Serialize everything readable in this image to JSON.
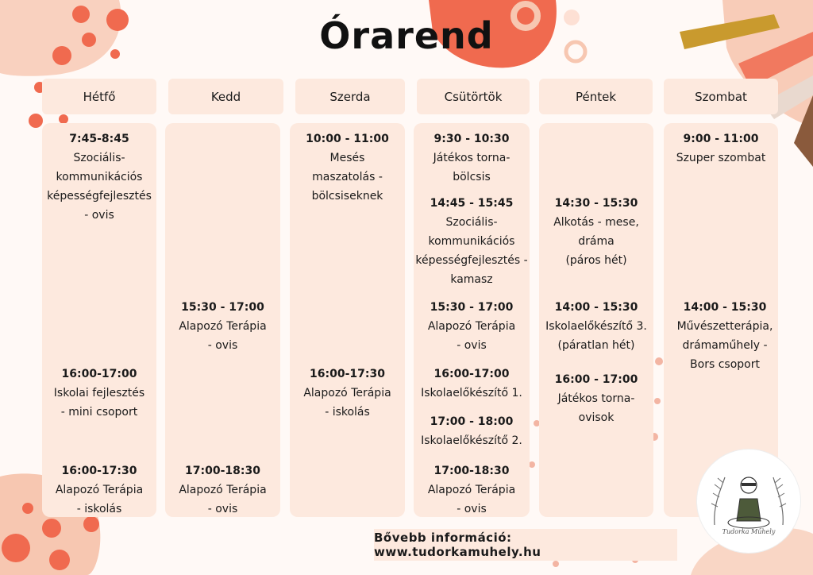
{
  "title": "Órarend",
  "days": [
    {
      "name": "Hétfő",
      "entries": [
        {
          "time": "7:45-8:45",
          "activity": "Szociális-\nkommunikációs\nképességfejlesztés\n- ovis"
        },
        {
          "time": "16:00-17:00",
          "activity": "Iskolai fejlesztés\n- mini csoport"
        },
        {
          "time": "16:00-17:30",
          "activity": "Alapozó Terápia\n- iskolás"
        }
      ]
    },
    {
      "name": "Kedd",
      "entries": [
        {
          "time": "15:30 - 17:00",
          "activity": "Alapozó Terápia\n- ovis"
        },
        {
          "time": "17:00-18:30",
          "activity": "Alapozó Terápia\n- ovis"
        }
      ]
    },
    {
      "name": "Szerda",
      "entries": [
        {
          "time": "10:00 - 11:00",
          "activity": "Mesés\nmaszatolás -\nbölcsiseknek"
        },
        {
          "time": "16:00-17:30",
          "activity": "Alapozó Terápia\n- iskolás"
        }
      ]
    },
    {
      "name": "Csütörtök",
      "entries": [
        {
          "time": "9:30 - 10:30",
          "activity": "Játékos torna-\nbölcsis"
        },
        {
          "time": "14:45 - 15:45",
          "activity": "Szociális-\nkommunikációs\nképességfejlesztés -\nkamasz"
        },
        {
          "time": "15:30 - 17:00",
          "activity": "Alapozó Terápia\n- ovis"
        },
        {
          "time": "16:00-17:00",
          "activity": "Iskolaelőkészítő 1."
        },
        {
          "time": "17:00 - 18:00",
          "activity": "Iskolaelőkészítő 2."
        },
        {
          "time": "17:00-18:30",
          "activity": "Alapozó Terápia\n- ovis"
        }
      ]
    },
    {
      "name": "Péntek",
      "entries": [
        {
          "time": "14:30 - 15:30",
          "activity": "Alkotás - mese,\ndráma\n(páros hét)"
        },
        {
          "time": "14:00 - 15:30",
          "activity": "Iskolaelőkészítő 3.\n(páratlan hét)"
        },
        {
          "time": "16:00 - 17:00",
          "activity": "Játékos torna-\novisok"
        }
      ]
    },
    {
      "name": "Szombat",
      "entries": [
        {
          "time": "9:00 - 11:00",
          "activity": "Szuper szombat"
        },
        {
          "time": "14:00 - 15:30",
          "activity": "Művészetterápia,\ndrámaműhely -\nBors csoport"
        }
      ]
    }
  ],
  "footer": "Bővebb információ: www.tudorkamuhely.hu",
  "logo_text": "Tudorka Műhely",
  "colors": {
    "background": "#fff9f6",
    "panel": "#fde9de",
    "accent_red": "#f06a4f",
    "accent_peach": "#f7c7b1",
    "accent_mustard": "#c99a2e",
    "accent_brown": "#8a5a3c"
  }
}
